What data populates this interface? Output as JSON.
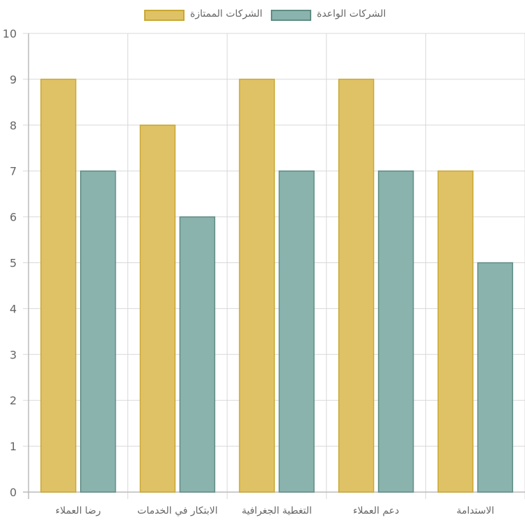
{
  "chart_data": {
    "type": "bar",
    "categories": [
      "رضا العملاء",
      "الابتكار في الخدمات",
      "التغطية الجغرافية",
      "دعم العملاء",
      "الاستدامة"
    ],
    "series": [
      {
        "name": "الشركات الممتازة",
        "values": [
          9,
          8,
          9,
          9,
          7
        ],
        "fill": "#e0c266",
        "stroke": "#c9a732"
      },
      {
        "name": "الشركات الواعدة",
        "values": [
          7,
          6,
          7,
          7,
          5
        ],
        "fill": "#8ab3ae",
        "stroke": "#5e8c84"
      }
    ],
    "ylim": [
      0,
      10
    ],
    "yticks": [
      "0",
      "1",
      "2",
      "3",
      "4",
      "5",
      "6",
      "7",
      "8",
      "9",
      "10"
    ],
    "grid": true,
    "legend": "top-center",
    "title": "",
    "xlabel": "",
    "ylabel": ""
  }
}
